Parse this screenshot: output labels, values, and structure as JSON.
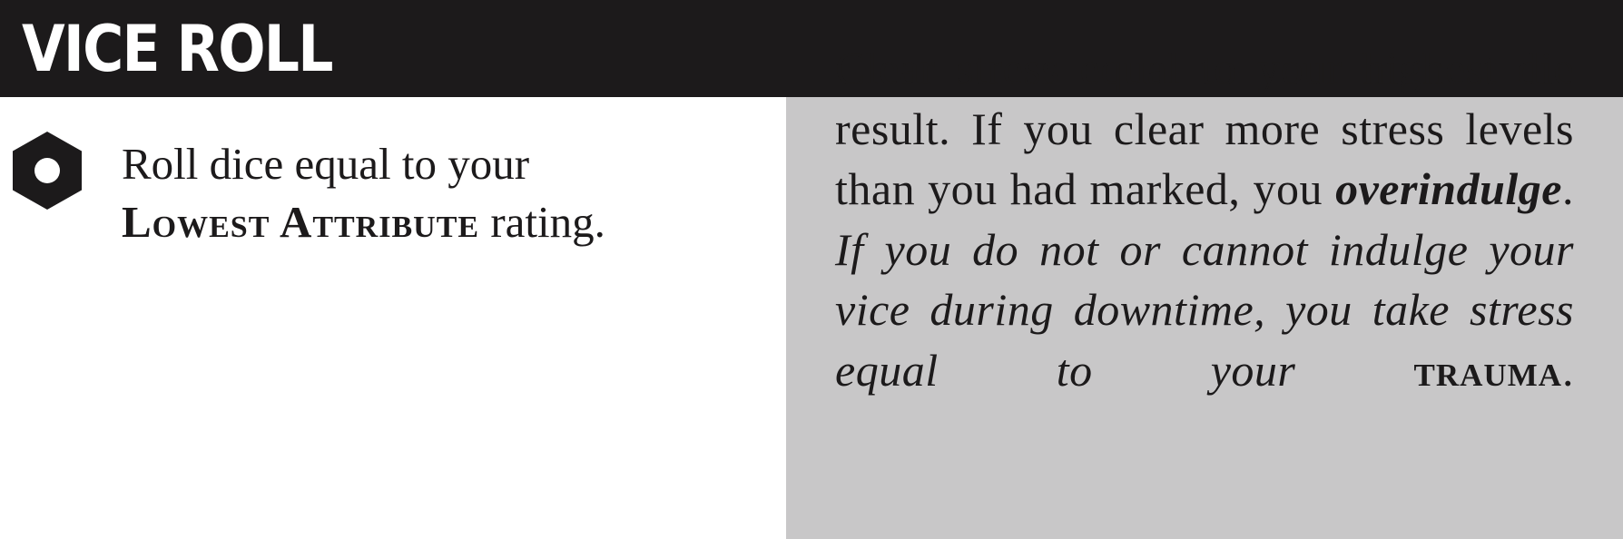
{
  "header": {
    "title": "VICE ROLL"
  },
  "roll": {
    "icon": "hexagon-nut-icon",
    "line1": "Roll dice equal to your",
    "attribute": "Lowest Attribute",
    "rating": " rating."
  },
  "effect": {
    "plain": "Clear stress equal to your highest die result. If you clear more stress levels than you had marked, you ",
    "overindulge": "overindulge",
    "period": ".",
    "italic": " If you do not or cannot indulge your vice during downtime, you take stress equal to your ",
    "trauma": "trauma",
    "end": "."
  },
  "colors": {
    "header_bg": "#1c1a1b",
    "panel_bg": "#c8c7c8",
    "text": "#1c1a1b"
  }
}
